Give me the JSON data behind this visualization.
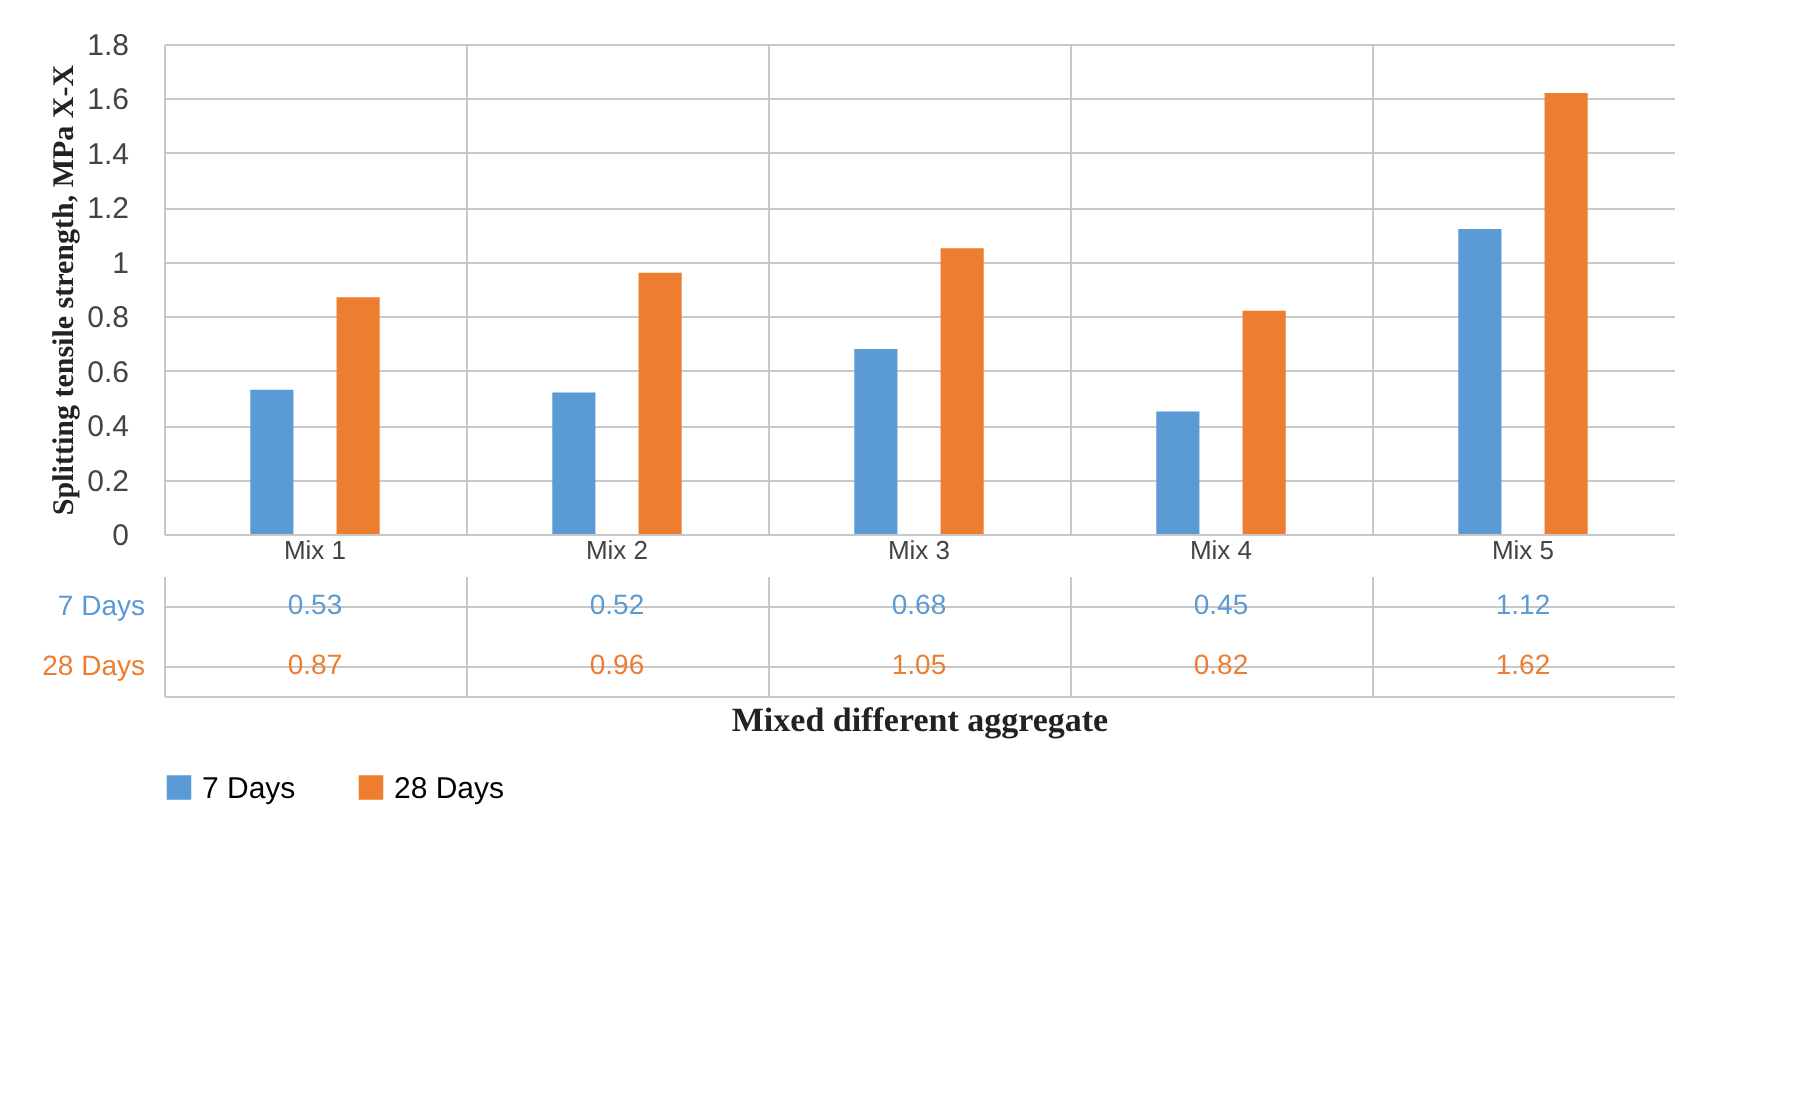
{
  "chart_data": {
    "type": "bar",
    "xlabel": "Mixed different aggregate",
    "ylabel": "Splitting tensile strength, MPa X-X",
    "categories": [
      "Mix 1",
      "Mix 2",
      "Mix 3",
      "Mix 4",
      "Mix 5"
    ],
    "series": [
      {
        "name": "7 Days",
        "color": "#5b9bd5",
        "values": [
          0.53,
          0.52,
          0.68,
          0.45,
          1.12
        ]
      },
      {
        "name": "28 Days",
        "color": "#ed7d31",
        "values": [
          0.87,
          0.96,
          1.05,
          0.82,
          1.62
        ]
      }
    ],
    "ylim": [
      0,
      1.8
    ],
    "yticks": [
      0,
      0.2,
      0.4,
      0.6,
      0.8,
      1,
      1.2,
      1.4,
      1.6,
      1.8
    ],
    "grid": true,
    "data_labels": true,
    "legend": "bottom"
  }
}
